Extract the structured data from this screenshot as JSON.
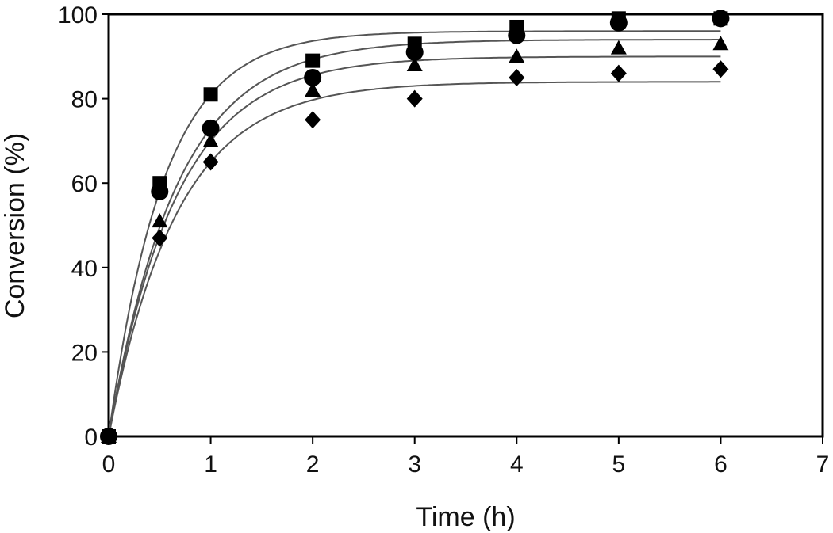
{
  "chart_data": {
    "type": "scatter",
    "title": "",
    "xlabel": "Time (h)",
    "ylabel": "Conversion (%)",
    "xlim": [
      0,
      7
    ],
    "ylim": [
      0,
      100
    ],
    "xticks": [
      0,
      1,
      2,
      3,
      4,
      5,
      6,
      7
    ],
    "yticks": [
      0,
      20,
      40,
      60,
      80,
      100
    ],
    "grid": false,
    "legend": "none",
    "fitted_curves": true,
    "marker_color": "#000000",
    "curve_color": "#555555",
    "series": [
      {
        "marker": "square",
        "x": [
          0,
          0.5,
          1,
          2,
          3,
          4,
          5,
          6
        ],
        "y": [
          0,
          60,
          81,
          89,
          93,
          97,
          99,
          99
        ],
        "fit_plateau": 96
      },
      {
        "marker": "circle",
        "x": [
          0,
          0.5,
          1,
          2,
          3,
          4,
          5,
          6
        ],
        "y": [
          0,
          58,
          73,
          85,
          91,
          95,
          98,
          99
        ],
        "fit_plateau": 94
      },
      {
        "marker": "triangle",
        "x": [
          0,
          0.5,
          1,
          2,
          3,
          4,
          5,
          6
        ],
        "y": [
          0,
          51,
          70,
          82,
          88,
          90,
          92,
          93
        ],
        "fit_plateau": 90
      },
      {
        "marker": "diamond",
        "x": [
          0,
          0.5,
          1,
          2,
          3,
          4,
          5,
          6
        ],
        "y": [
          0,
          47,
          65,
          75,
          80,
          85,
          86,
          87
        ],
        "fit_plateau": 84
      }
    ]
  }
}
